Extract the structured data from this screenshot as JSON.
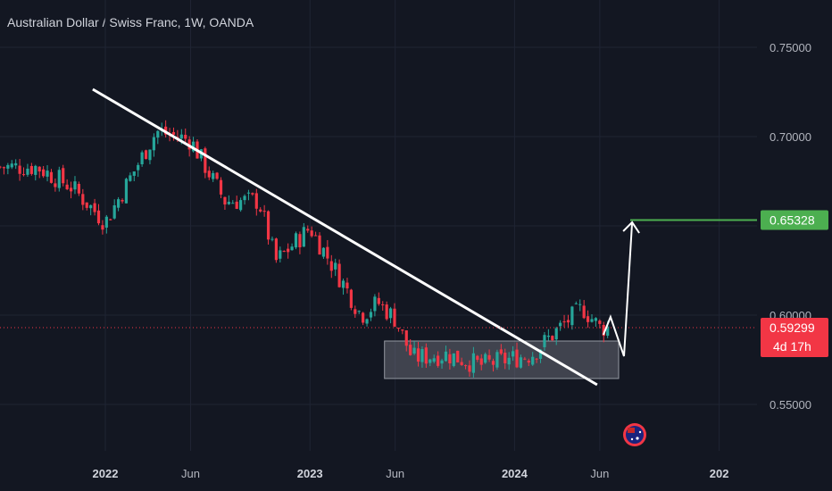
{
  "header": {
    "title": "Australian Dollar / Swiss Franc, 1W, OANDA"
  },
  "price": {
    "current": "0.59299",
    "countdown": "4d 17h",
    "target": "0.65328"
  },
  "colors": {
    "background": "#131722",
    "up": "#26a69a",
    "down": "#f23645",
    "target": "#4caf50",
    "drawing": "#ffffff"
  },
  "icons": {
    "event_marker": "australia-flag-icon"
  },
  "chart_data": {
    "type": "candlestick",
    "title": "Australian Dollar / Swiss Franc, 1W, OANDA",
    "y_ticks": [
      "0.75000",
      "0.70000",
      "0.60000",
      "0.55000"
    ],
    "x_ticks": [
      {
        "label": "2022",
        "date": "2022-01",
        "year": true
      },
      {
        "label": "Jun",
        "date": "2022-06",
        "year": false
      },
      {
        "label": "2023",
        "date": "2023-01",
        "year": true
      },
      {
        "label": "Jun",
        "date": "2023-06",
        "year": false
      },
      {
        "label": "2024",
        "date": "2024-01",
        "year": true
      },
      {
        "label": "Jun",
        "date": "2024-06",
        "year": false
      },
      {
        "label": "202",
        "date": "2025-01",
        "year": true
      }
    ],
    "ylim": [
      0.536,
      0.763
    ],
    "xlim": [
      "2021-09",
      "2025-03"
    ],
    "grid": true,
    "weekly_closes_anchor": [
      {
        "date": "2021-09",
        "close": 0.683
      },
      {
        "date": "2021-11",
        "close": 0.672
      },
      {
        "date": "2022-01",
        "close": 0.652
      },
      {
        "date": "2022-04",
        "close": 0.703
      },
      {
        "date": "2022-06",
        "close": 0.698
      },
      {
        "date": "2022-08",
        "close": 0.664
      },
      {
        "date": "2022-10",
        "close": 0.664
      },
      {
        "date": "2022-11",
        "close": 0.63
      },
      {
        "date": "2023-01",
        "close": 0.649
      },
      {
        "date": "2023-03",
        "close": 0.617
      },
      {
        "date": "2023-04",
        "close": 0.6
      },
      {
        "date": "2023-05",
        "close": 0.607
      },
      {
        "date": "2023-06",
        "close": 0.598
      },
      {
        "date": "2023-07",
        "close": 0.576
      },
      {
        "date": "2023-09",
        "close": 0.578
      },
      {
        "date": "2023-11",
        "close": 0.572
      },
      {
        "date": "2024-02",
        "close": 0.578
      },
      {
        "date": "2024-04",
        "close": 0.596
      },
      {
        "date": "2024-05",
        "close": 0.604
      },
      {
        "date": "2024-06",
        "close": 0.593
      }
    ],
    "trendline": [
      {
        "date": "2021-12",
        "price": 0.7265
      },
      {
        "date": "2024-06",
        "price": 0.561
      }
    ],
    "support_zone": {
      "from": "2023-06",
      "to": "2024-07",
      "low": 0.5645,
      "high": 0.5855
    },
    "projection_path": [
      {
        "date": "2024-06",
        "price": 0.593
      },
      {
        "date": "2024-07",
        "price": 0.581
      },
      {
        "date": "2024-08",
        "price": 0.652
      }
    ],
    "target_level": 0.65328,
    "current_price": 0.59299
  }
}
